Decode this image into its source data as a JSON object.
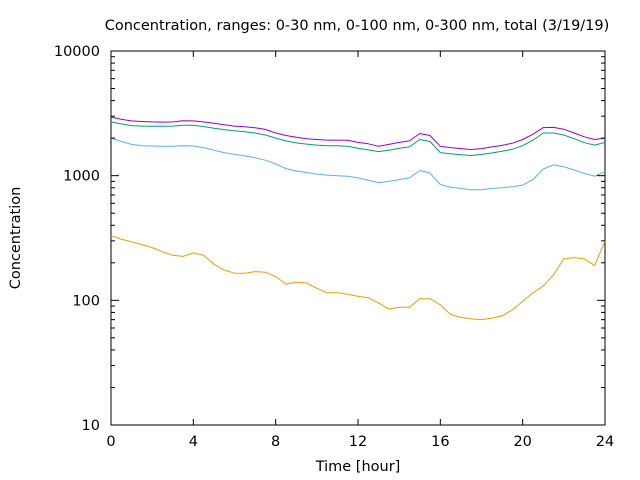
{
  "chart_data": {
    "type": "line",
    "title": "Concentration, ranges: 0-30 nm, 0-100 nm, 0-300 nm, total (3/19/19)",
    "xlabel": "Time [hour]",
    "ylabel": "Concentration",
    "xlim": [
      0,
      24
    ],
    "ylim": [
      10,
      10000
    ],
    "yscale": "log",
    "grid": false,
    "legend": "none",
    "x_ticks": [
      "0",
      "4",
      "8",
      "12",
      "16",
      "20",
      "24"
    ],
    "y_ticks": [
      "10",
      "100",
      "1000",
      "10000"
    ],
    "x": [
      0,
      0.5,
      1,
      1.5,
      2,
      2.5,
      3,
      3.5,
      4,
      4.5,
      5,
      5.5,
      6,
      6.5,
      7,
      7.5,
      8,
      8.5,
      9,
      9.5,
      10,
      10.5,
      11,
      11.5,
      12,
      12.5,
      13,
      13.5,
      14,
      14.5,
      15,
      15.5,
      16,
      16.5,
      17,
      17.5,
      18,
      18.5,
      19,
      19.5,
      20,
      20.5,
      21,
      21.5,
      22,
      22.5,
      23,
      23.5,
      24
    ],
    "series": [
      {
        "color": "#9400d3",
        "values": [
          2950,
          2830,
          2750,
          2720,
          2700,
          2690,
          2700,
          2760,
          2750,
          2700,
          2630,
          2560,
          2500,
          2470,
          2420,
          2350,
          2200,
          2100,
          2030,
          1980,
          1950,
          1930,
          1930,
          1920,
          1850,
          1800,
          1720,
          1780,
          1850,
          1900,
          2180,
          2100,
          1720,
          1680,
          1650,
          1620,
          1650,
          1700,
          1750,
          1820,
          1950,
          2150,
          2430,
          2440,
          2360,
          2200,
          2050,
          1950,
          2000
        ]
      },
      {
        "color": "#009e73",
        "values": [
          2700,
          2600,
          2520,
          2500,
          2490,
          2490,
          2500,
          2540,
          2540,
          2480,
          2400,
          2340,
          2290,
          2250,
          2200,
          2120,
          2000,
          1900,
          1830,
          1790,
          1760,
          1740,
          1740,
          1720,
          1660,
          1610,
          1560,
          1600,
          1660,
          1700,
          1950,
          1880,
          1530,
          1500,
          1470,
          1450,
          1480,
          1520,
          1570,
          1630,
          1740,
          1930,
          2200,
          2200,
          2120,
          1980,
          1840,
          1760,
          1850
        ]
      },
      {
        "color": "#56b4e9",
        "values": [
          2000,
          1880,
          1780,
          1740,
          1730,
          1720,
          1720,
          1740,
          1730,
          1680,
          1600,
          1530,
          1480,
          1440,
          1390,
          1330,
          1240,
          1140,
          1090,
          1060,
          1030,
          1010,
          1000,
          990,
          960,
          920,
          880,
          900,
          930,
          960,
          1100,
          1050,
          850,
          810,
          790,
          770,
          770,
          790,
          800,
          815,
          840,
          930,
          1130,
          1220,
          1180,
          1110,
          1040,
          990,
          1080
        ]
      },
      {
        "color": "#e69f00",
        "values": [
          330,
          310,
          295,
          280,
          265,
          245,
          230,
          225,
          240,
          230,
          195,
          175,
          165,
          165,
          170,
          168,
          155,
          135,
          140,
          138,
          125,
          115,
          115,
          112,
          108,
          105,
          95,
          85,
          88,
          88,
          103,
          103,
          92,
          77,
          73,
          71,
          70,
          72,
          75,
          84,
          98,
          115,
          130,
          160,
          215,
          220,
          215,
          190,
          300
        ]
      }
    ]
  }
}
